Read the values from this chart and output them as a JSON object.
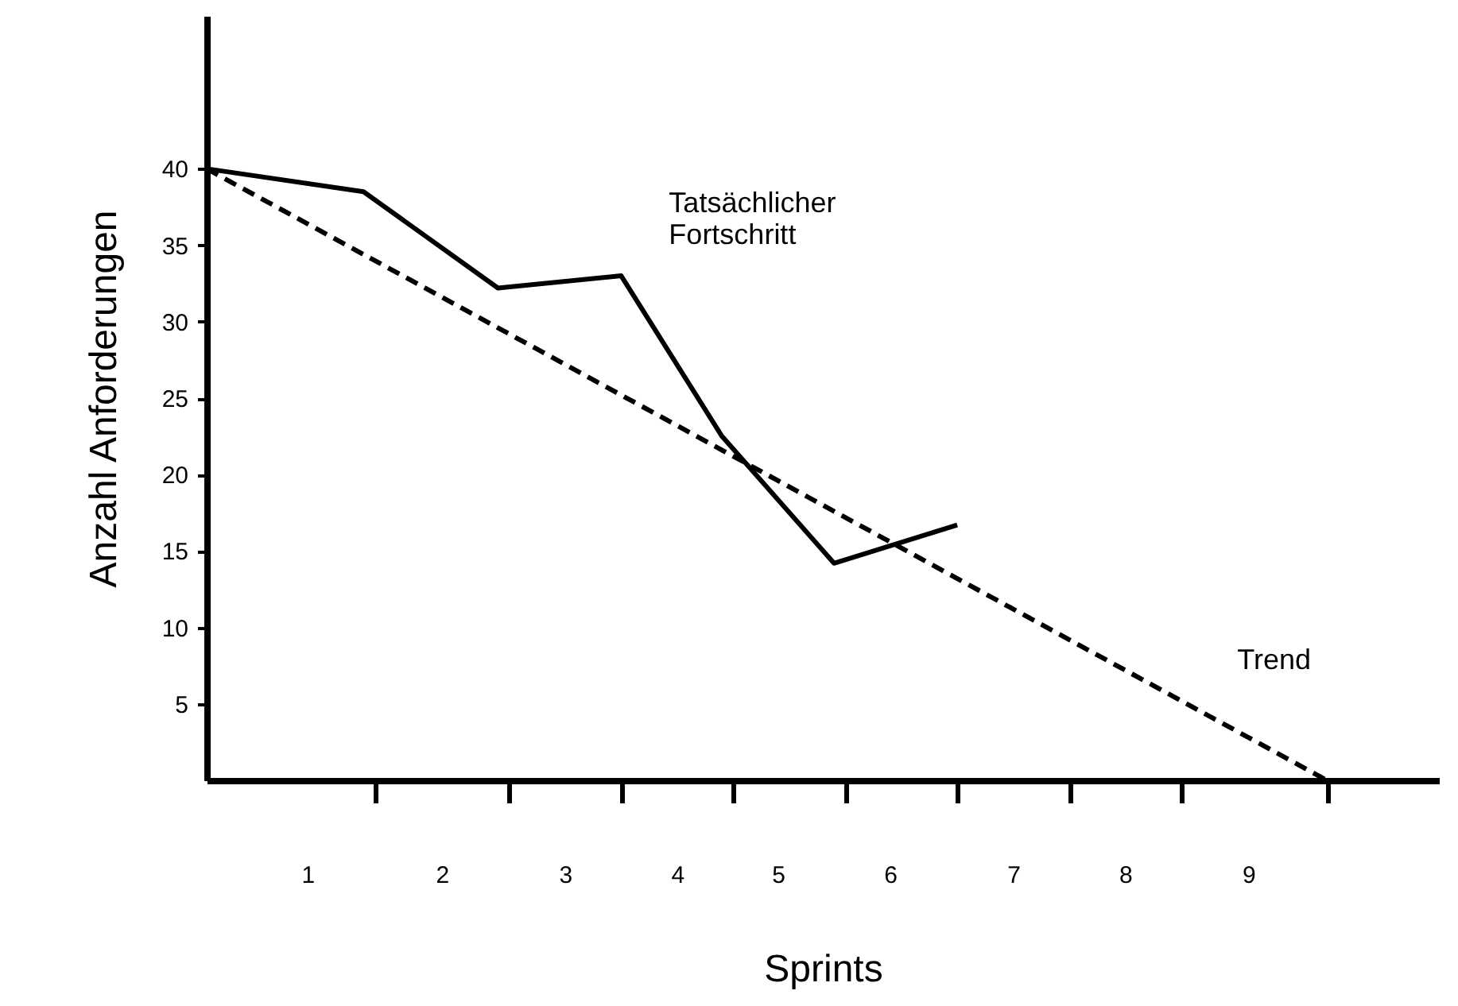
{
  "chart_data": {
    "type": "line",
    "xlabel": "Sprints",
    "ylabel": "Anzahl Anforderungen",
    "xlim": [
      0,
      11
    ],
    "ylim": [
      0,
      50
    ],
    "xticks": [
      {
        "value": 0.9,
        "label": "1"
      },
      {
        "value": 1.5,
        "label": null
      },
      {
        "value": 2.1,
        "label": "2"
      },
      {
        "value": 2.7,
        "label": null
      },
      {
        "value": 3.2,
        "label": "3"
      },
      {
        "value": 3.7,
        "label": null
      },
      {
        "value": 4.2,
        "label": "4"
      },
      {
        "value": 4.7,
        "label": null
      },
      {
        "value": 5.1,
        "label": "5"
      },
      {
        "value": 5.7,
        "label": null
      },
      {
        "value": 6.1,
        "label": "6"
      },
      {
        "value": 6.7,
        "label": null
      },
      {
        "value": 7.2,
        "label": "7"
      },
      {
        "value": 7.7,
        "label": null
      },
      {
        "value": 8.2,
        "label": "8"
      },
      {
        "value": 8.7,
        "label": null
      },
      {
        "value": 9.3,
        "label": "9"
      },
      {
        "value": 10,
        "label": null
      }
    ],
    "yticks": [
      5,
      10,
      15,
      20,
      25,
      30,
      35,
      40
    ],
    "grid": false,
    "marker": "none",
    "series": [
      {
        "name": "Tatsächlicher Fortschritt",
        "color": "#000000",
        "line_style": "solid",
        "x": [
          0,
          1.4,
          2.6,
          3.7,
          4.6,
          5.6,
          6.7
        ],
        "values": [
          40,
          38.5,
          32.2,
          33,
          22.5,
          14.2,
          16.7
        ]
      },
      {
        "name": "Trend",
        "type": "line",
        "color": "#000000",
        "line_style": "dashed",
        "x": [
          0,
          10
        ],
        "values": [
          40,
          0
        ]
      }
    ]
  }
}
